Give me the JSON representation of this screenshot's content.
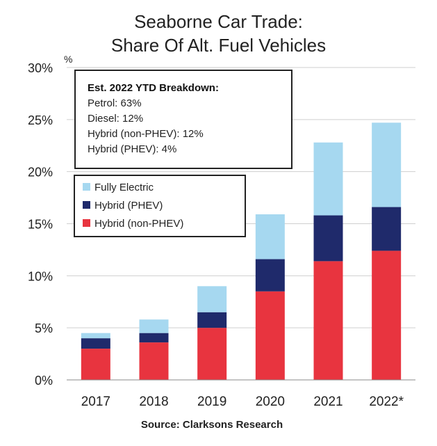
{
  "chart_data": {
    "type": "bar",
    "stacked": true,
    "title": [
      "Seaborne Car Trade:",
      "Share Of Alt. Fuel Vehicles"
    ],
    "unit": "%",
    "ylim": [
      0,
      30
    ],
    "yticks": [
      0,
      5,
      10,
      15,
      20,
      25,
      30
    ],
    "ytick_labels": [
      "0%",
      "5%",
      "10%",
      "15%",
      "20%",
      "25%",
      "30%"
    ],
    "grid": true,
    "categories": [
      "2017",
      "2018",
      "2019",
      "2020",
      "2021",
      "2022*"
    ],
    "series": [
      {
        "name": "Hybrid (non-PHEV)",
        "color": "#e8343f",
        "values": [
          3.0,
          3.6,
          5.0,
          8.5,
          11.4,
          12.4
        ]
      },
      {
        "name": "Hybrid (PHEV)",
        "color": "#1f2a6b",
        "values": [
          1.0,
          0.9,
          1.5,
          3.1,
          4.4,
          4.2
        ]
      },
      {
        "name": "Fully Electric",
        "color": "#a6d8f0",
        "values": [
          0.5,
          1.3,
          2.5,
          4.3,
          7.0,
          8.1
        ]
      }
    ],
    "legend": {
      "placement": "upper-left",
      "entries": [
        "Fully Electric",
        "Hybrid (PHEV)",
        "Hybrid (non-PHEV)"
      ]
    },
    "annotation": {
      "title": "Est. 2022 YTD Breakdown:",
      "lines": [
        "Petrol: 63%",
        "Diesel: 12%",
        "Hybrid (non-PHEV): 12%",
        "Hybrid (PHEV): 4%"
      ]
    },
    "source": "Source: Clarksons Research"
  }
}
